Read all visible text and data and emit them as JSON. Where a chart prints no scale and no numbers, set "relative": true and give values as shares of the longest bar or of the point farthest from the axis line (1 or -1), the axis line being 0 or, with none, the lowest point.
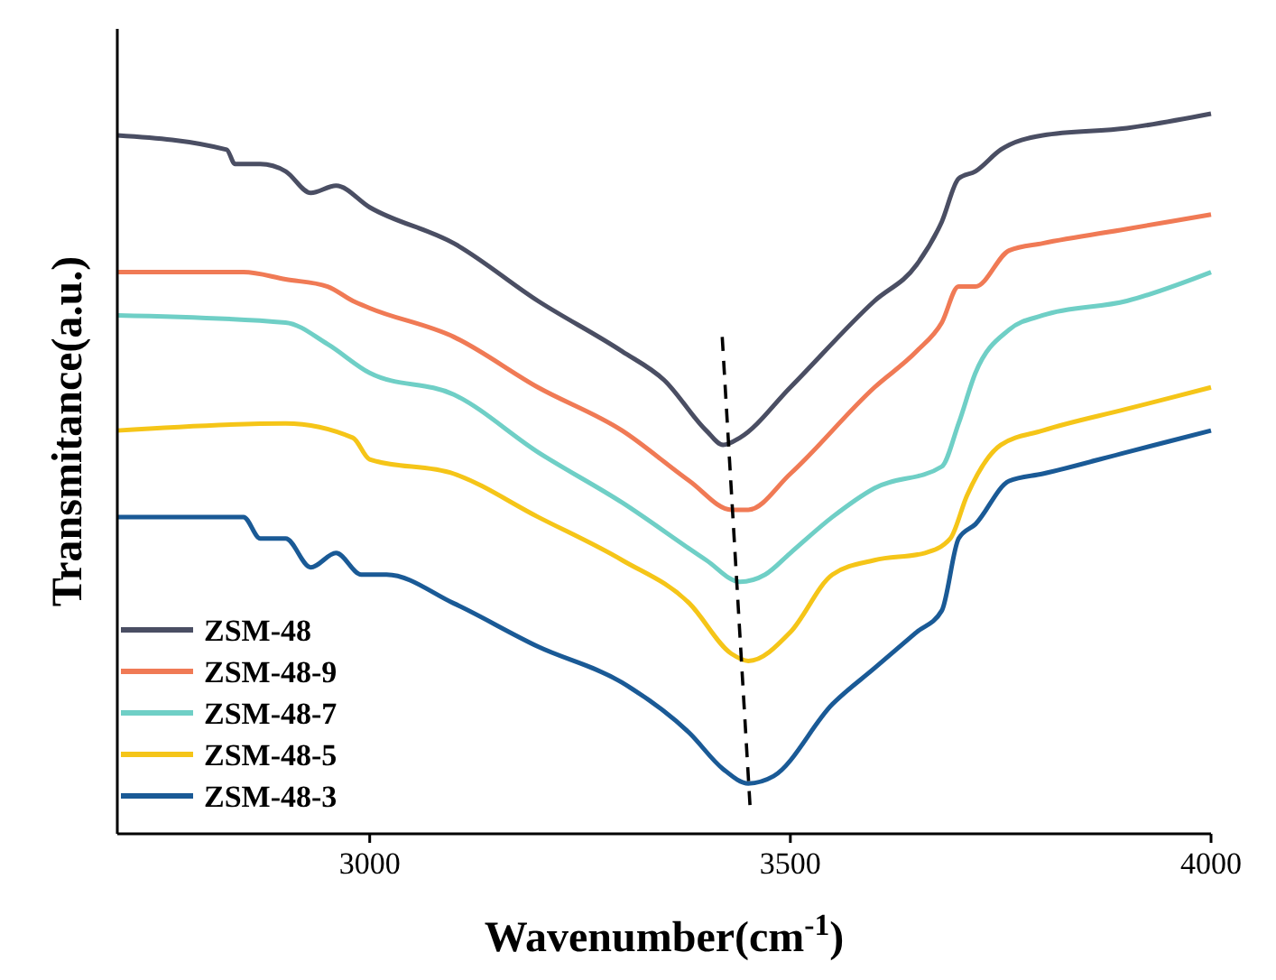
{
  "chart_data": {
    "type": "line",
    "relative": true,
    "xlabel": "Wavenumber(cm$^{-1}$)",
    "ylabel": "Transmitance(a.u.)",
    "xlim": [
      2700,
      4000
    ],
    "xticks": [
      3000,
      3500,
      4000
    ],
    "grid": false,
    "legend": "bottom left",
    "marker": "none",
    "line_style": "solid",
    "series": [
      {
        "name": "ZSM-48",
        "color": "#4a4e63",
        "x": [
          2700,
          2830,
          2840,
          2870,
          2900,
          2930,
          2960,
          3000,
          3100,
          3200,
          3300,
          3350,
          3400,
          3420,
          3440,
          3500,
          3600,
          3650,
          3680,
          3700,
          3720,
          3750,
          3800,
          3900,
          4000
        ],
        "values": [
          0.97,
          0.95,
          0.93,
          0.93,
          0.92,
          0.89,
          0.9,
          0.87,
          0.82,
          0.74,
          0.67,
          0.63,
          0.56,
          0.54,
          0.55,
          0.62,
          0.74,
          0.79,
          0.85,
          0.91,
          0.92,
          0.95,
          0.97,
          0.98,
          1
        ]
      },
      {
        "name": "ZSM-48-9",
        "color": "#f07a55",
        "x": [
          2700,
          2850,
          2900,
          2950,
          2980,
          3000,
          3100,
          3200,
          3300,
          3380,
          3430,
          3450,
          3500,
          3600,
          3650,
          3680,
          3700,
          3720,
          3760,
          3800,
          3900,
          4000
        ],
        "values": [
          0.78,
          0.78,
          0.77,
          0.76,
          0.74,
          0.73,
          0.69,
          0.62,
          0.56,
          0.49,
          0.45,
          0.45,
          0.5,
          0.62,
          0.67,
          0.71,
          0.76,
          0.76,
          0.81,
          0.82,
          0.84,
          0.86
        ]
      },
      {
        "name": "ZSM-48-7",
        "color": "#6fcfc6",
        "x": [
          2700,
          2900,
          2950,
          3000,
          3100,
          3200,
          3300,
          3400,
          3440,
          3470,
          3500,
          3550,
          3600,
          3680,
          3700,
          3720,
          3760,
          3800,
          3900,
          4000
        ],
        "values": [
          0.72,
          0.71,
          0.68,
          0.64,
          0.61,
          0.53,
          0.46,
          0.38,
          0.35,
          0.36,
          0.39,
          0.44,
          0.48,
          0.51,
          0.57,
          0.64,
          0.7,
          0.72,
          0.74,
          0.78
        ]
      },
      {
        "name": "ZSM-48-5",
        "color": "#f5c518",
        "x": [
          2700,
          2900,
          2980,
          3000,
          3100,
          3200,
          3300,
          3380,
          3430,
          3450,
          3500,
          3550,
          3600,
          3660,
          3690,
          3710,
          3750,
          3800,
          3900,
          4000
        ],
        "values": [
          0.56,
          0.57,
          0.55,
          0.52,
          0.5,
          0.44,
          0.38,
          0.32,
          0.25,
          0.24,
          0.28,
          0.36,
          0.38,
          0.39,
          0.41,
          0.47,
          0.54,
          0.56,
          0.59,
          0.62
        ]
      },
      {
        "name": "ZSM-48-3",
        "color": "#1a5a96",
        "x": [
          2700,
          2850,
          2870,
          2900,
          2930,
          2960,
          2990,
          3020,
          3100,
          3200,
          3300,
          3380,
          3420,
          3450,
          3480,
          3550,
          3600,
          3650,
          3680,
          3700,
          3720,
          3760,
          3800,
          3900,
          4000
        ],
        "values": [
          0.44,
          0.44,
          0.41,
          0.41,
          0.37,
          0.39,
          0.36,
          0.36,
          0.32,
          0.26,
          0.21,
          0.14,
          0.09,
          0.07,
          0.08,
          0.18,
          0.23,
          0.28,
          0.31,
          0.41,
          0.43,
          0.49,
          0.5,
          0.53,
          0.56
        ]
      },
      {
        "type": "line",
        "color": "#000000",
        "line_style": "dashed",
        "x": [
          3419,
          3452
        ],
        "values": [
          0.69,
          0.04
        ]
      }
    ]
  }
}
